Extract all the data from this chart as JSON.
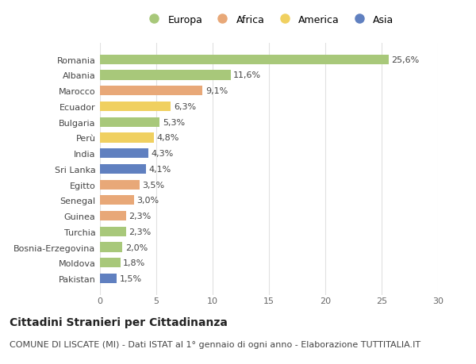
{
  "countries": [
    "Romania",
    "Albania",
    "Marocco",
    "Ecuador",
    "Bulgaria",
    "Perù",
    "India",
    "Sri Lanka",
    "Egitto",
    "Senegal",
    "Guinea",
    "Turchia",
    "Bosnia-Erzegovina",
    "Moldova",
    "Pakistan"
  ],
  "values": [
    25.6,
    11.6,
    9.1,
    6.3,
    5.3,
    4.8,
    4.3,
    4.1,
    3.5,
    3.0,
    2.3,
    2.3,
    2.0,
    1.8,
    1.5
  ],
  "labels": [
    "25,6%",
    "11,6%",
    "9,1%",
    "6,3%",
    "5,3%",
    "4,8%",
    "4,3%",
    "4,1%",
    "3,5%",
    "3,0%",
    "2,3%",
    "2,3%",
    "2,0%",
    "1,8%",
    "1,5%"
  ],
  "continents": [
    "Europa",
    "Europa",
    "Africa",
    "America",
    "Europa",
    "America",
    "Asia",
    "Asia",
    "Africa",
    "Africa",
    "Africa",
    "Europa",
    "Europa",
    "Europa",
    "Asia"
  ],
  "continent_colors": {
    "Europa": "#a8c87a",
    "Africa": "#e8a878",
    "America": "#f0d060",
    "Asia": "#6080c0"
  },
  "legend_order": [
    "Europa",
    "Africa",
    "America",
    "Asia"
  ],
  "title": "Cittadini Stranieri per Cittadinanza",
  "subtitle": "COMUNE DI LISCATE (MI) - Dati ISTAT al 1° gennaio di ogni anno - Elaborazione TUTTITALIA.IT",
  "xlim": [
    0,
    30
  ],
  "xticks": [
    0,
    5,
    10,
    15,
    20,
    25,
    30
  ],
  "bg_color": "#ffffff",
  "grid_color": "#e0e0e0",
  "title_fontsize": 10,
  "subtitle_fontsize": 8,
  "bar_label_fontsize": 8,
  "tick_fontsize": 8,
  "legend_fontsize": 9,
  "bar_height": 0.62
}
